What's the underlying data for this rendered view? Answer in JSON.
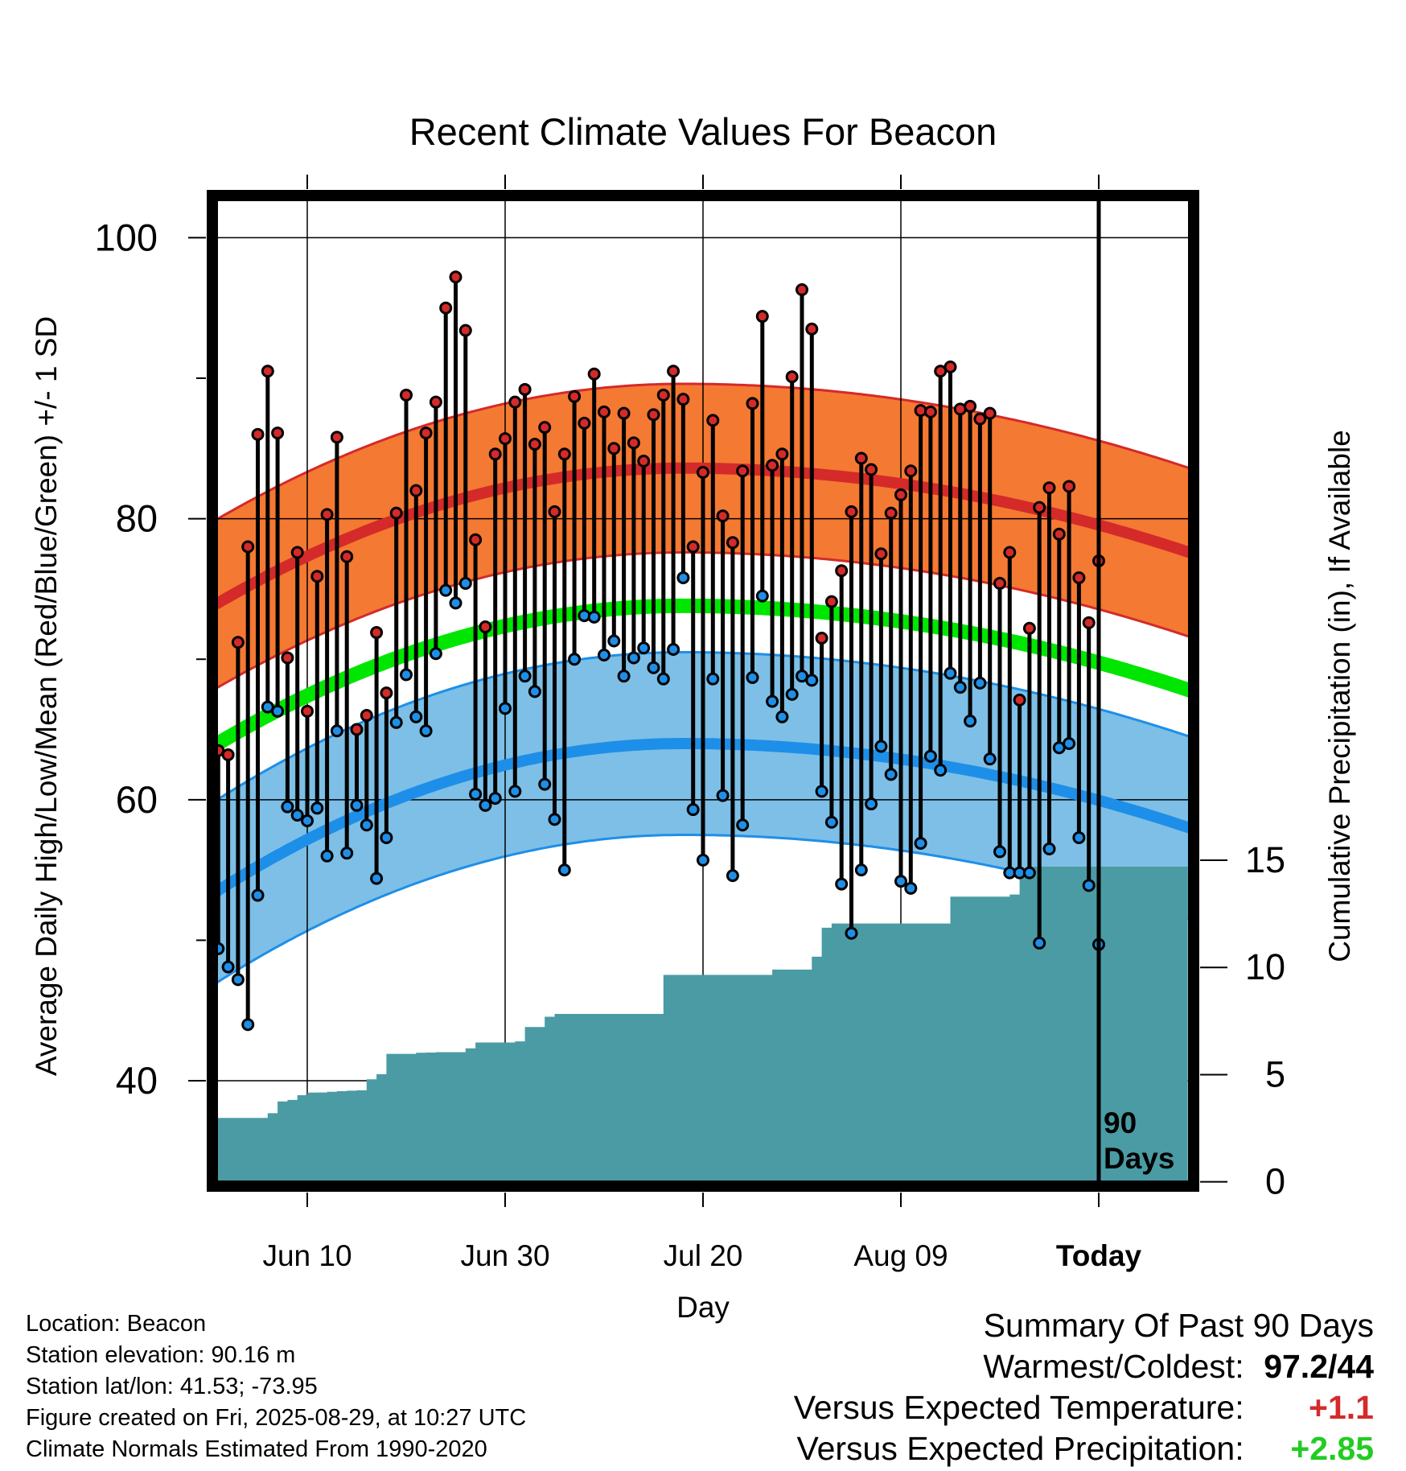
{
  "chart_data": {
    "type": "line",
    "title": "Recent Climate Values For Beacon",
    "xlabel": "Day",
    "ylabel": "Average Daily High/Low/Mean (Red/Blue/Green) +/- 1 SD",
    "y2label": "Cumulative Precipitation (in), If Available",
    "ylim": [
      32.5,
      103
    ],
    "y2lim": [
      -0.2,
      46
    ],
    "x_range_days": [
      -90,
      10
    ],
    "x_ticks": [
      {
        "day": -80,
        "label": "Jun 10"
      },
      {
        "day": -60,
        "label": "Jun 30"
      },
      {
        "day": -40,
        "label": "Jul 20"
      },
      {
        "day": -20,
        "label": "Aug 09"
      },
      {
        "day": 0,
        "label": "Today"
      }
    ],
    "y_ticks": [
      40,
      60,
      80,
      100
    ],
    "y2_ticks": [
      0,
      5,
      10,
      15
    ],
    "today_marker": "90\nDays",
    "normals": {
      "high_mean": {
        "start": 73.6,
        "peak": 83.6,
        "end": 77.4
      },
      "high_sd": 6.0,
      "low_mean": {
        "start": 53.1,
        "peak": 64.0,
        "end": 57.8
      },
      "low_sd": 6.5,
      "daily_mean": {
        "start": 63.6,
        "peak": 73.8,
        "end": 67.6
      }
    },
    "series": [
      {
        "name": "Daily High",
        "color": "#d42a2a",
        "values": [
          63.5,
          63.2,
          71.2,
          78.0,
          86.0,
          90.5,
          86.1,
          70.1,
          77.6,
          66.3,
          75.9,
          80.3,
          85.8,
          77.3,
          65.0,
          66.0,
          71.9,
          67.6,
          80.4,
          88.8,
          82.0,
          86.1,
          88.3,
          95.0,
          97.2,
          93.4,
          78.5,
          72.3,
          84.6,
          85.7,
          88.3,
          89.2,
          85.3,
          86.5,
          80.5,
          84.6,
          88.7,
          86.8,
          90.3,
          87.6,
          85.0,
          87.5,
          85.4,
          84.1,
          87.4,
          88.8,
          90.5,
          88.5,
          78.0,
          83.3,
          87.0,
          80.2,
          78.3,
          83.4,
          88.2,
          94.4,
          83.8,
          84.6,
          90.1,
          96.3,
          93.5,
          71.5,
          74.1,
          76.3,
          80.5,
          84.3,
          83.5,
          77.5,
          80.4,
          81.7,
          83.4,
          87.7,
          87.6,
          90.5,
          90.8,
          87.8,
          88.0,
          87.1,
          87.5,
          75.4,
          77.6,
          67.1,
          72.2,
          80.8,
          82.2,
          78.9,
          82.3,
          75.8,
          72.6,
          77.0
        ]
      },
      {
        "name": "Daily Low",
        "color": "#1e8fe8",
        "values": [
          49.4,
          48.1,
          47.2,
          44.0,
          53.2,
          66.6,
          66.3,
          59.5,
          58.9,
          58.5,
          59.4,
          56.0,
          64.9,
          56.2,
          59.6,
          58.2,
          54.4,
          57.3,
          65.5,
          68.9,
          65.9,
          64.9,
          70.4,
          74.9,
          74.0,
          75.4,
          60.4,
          59.6,
          60.1,
          66.5,
          60.6,
          68.8,
          67.7,
          61.1,
          58.6,
          55.0,
          70.0,
          73.1,
          73.0,
          70.3,
          71.3,
          68.8,
          70.1,
          70.8,
          69.4,
          68.6,
          70.7,
          75.8,
          59.3,
          55.7,
          68.6,
          60.3,
          54.6,
          58.2,
          68.7,
          74.5,
          67.0,
          65.9,
          67.5,
          68.8,
          68.5,
          60.6,
          58.4,
          54.0,
          50.5,
          55.0,
          59.7,
          63.8,
          61.8,
          54.2,
          53.7,
          56.9,
          63.1,
          62.1,
          69.0,
          68.0,
          65.6,
          68.3,
          62.9,
          56.3,
          54.8,
          54.8,
          54.8,
          49.8,
          56.5,
          63.7,
          64.0,
          57.3,
          53.9,
          49.7
        ]
      },
      {
        "name": "Cumulative Precipitation",
        "color": "#4a9ba4",
        "values": [
          2.98,
          2.98,
          2.98,
          2.98,
          2.98,
          2.98,
          3.2,
          3.75,
          3.82,
          4.04,
          4.16,
          4.17,
          4.2,
          4.23,
          4.25,
          4.27,
          4.78,
          5.02,
          5.97,
          5.97,
          5.97,
          6.02,
          6.03,
          6.05,
          6.05,
          6.05,
          6.23,
          6.5,
          6.5,
          6.5,
          6.5,
          6.55,
          7.22,
          7.22,
          7.7,
          7.83,
          7.83,
          7.83,
          7.83,
          7.83,
          7.83,
          7.83,
          7.83,
          7.83,
          7.83,
          7.83,
          9.65,
          9.65,
          9.65,
          9.65,
          9.65,
          9.65,
          9.65,
          9.65,
          9.65,
          9.65,
          9.65,
          9.9,
          9.9,
          9.9,
          9.9,
          10.5,
          11.85,
          12.05,
          12.05,
          12.05,
          12.05,
          12.05,
          12.05,
          12.05,
          12.05,
          12.05,
          12.05,
          12.05,
          12.05,
          13.3,
          13.3,
          13.3,
          13.3,
          13.3,
          13.3,
          13.4,
          14.6,
          14.7,
          14.7,
          14.7,
          14.7,
          14.7,
          14.7,
          14.7,
          14.7,
          14.7,
          14.7,
          14.7,
          14.7,
          14.7,
          14.7,
          14.7,
          14.7
        ]
      }
    ],
    "colors": {
      "high_band": "#f47932",
      "high_line": "#d42a2a",
      "low_band": "#7dbfe6",
      "low_line": "#1e8fe8",
      "mean_line": "#00e600",
      "precip_fill": "#4a9ba4"
    }
  },
  "info": {
    "location": "Location: Beacon",
    "elevation": "Station elevation: 90.16 m",
    "latlon": "Station lat/lon: 41.53; -73.95",
    "created": "Figure created on Fri, 2025-08-29, at 10:27 UTC",
    "normals": "Climate Normals Estimated From 1990-2020"
  },
  "summary": {
    "title": "Summary Of Past 90 Days",
    "warm_cold_label": "Warmest/Coldest:",
    "warm_cold_value": "97.2/44",
    "temp_label": "Versus Expected Temperature:",
    "temp_value": "+1.1",
    "temp_color": "#d42a2a",
    "precip_label": "Versus Expected Precipitation:",
    "precip_value": "+2.85",
    "precip_color": "#22cc22"
  }
}
